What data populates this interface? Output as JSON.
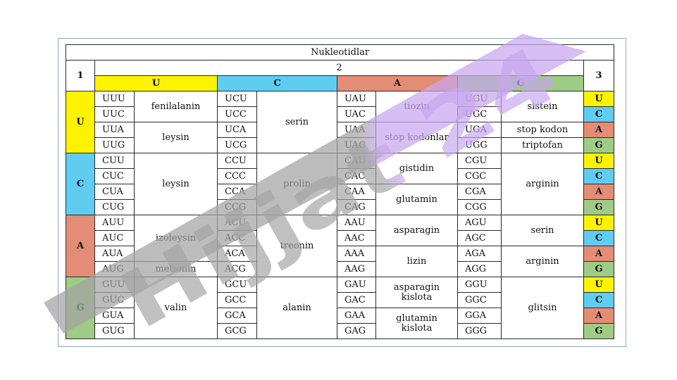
{
  "table": {
    "title": "Nukleotidlar",
    "label_first": "1",
    "label_second": "2",
    "label_third": "3",
    "bases": [
      "U",
      "C",
      "A",
      "G"
    ],
    "colors": {
      "U": "#fdf200",
      "C": "#5ecdf1",
      "A": "#e38c76",
      "G": "#9ecb85"
    },
    "blocks": [
      {
        "first": "U",
        "codons": [
          [
            "UUU",
            "UCU",
            "UAU",
            "UGU"
          ],
          [
            "UUC",
            "UCC",
            "UAC",
            "UGC"
          ],
          [
            "UUA",
            "UCA",
            "UAA",
            "UGA"
          ],
          [
            "UUG",
            "UCG",
            "UAG",
            "UGG"
          ]
        ],
        "amino": {
          "U": [
            "fenilalanin",
            "leysin"
          ],
          "C": [
            "serin"
          ],
          "A": [
            "tiozin",
            "stop kodonlar"
          ],
          "G": [
            "sistein",
            "stop kodon",
            "triptofan"
          ]
        }
      },
      {
        "first": "C",
        "codons": [
          [
            "CUU",
            "CCU",
            "CAU",
            "CGU"
          ],
          [
            "CUC",
            "CCC",
            "CAC",
            "CGC"
          ],
          [
            "CUA",
            "CCA",
            "CAA",
            "CGA"
          ],
          [
            "CUG",
            "CCG",
            "CAG",
            "CGG"
          ]
        ],
        "amino": {
          "U": [
            "leysin"
          ],
          "C": [
            "prolin"
          ],
          "A": [
            "gistidin",
            "glutamin"
          ],
          "G": [
            "arginin"
          ]
        }
      },
      {
        "first": "A",
        "codons": [
          [
            "AUU",
            "ACU",
            "AAU",
            "AGU"
          ],
          [
            "AUC",
            "ACC",
            "AAC",
            "AGC"
          ],
          [
            "AUA",
            "ACA",
            "AAA",
            "AGA"
          ],
          [
            "AUG",
            "ACG",
            "AAG",
            "AGG"
          ]
        ],
        "amino": {
          "U": [
            "izoleysin",
            "metionin"
          ],
          "C": [
            "treonin"
          ],
          "A": [
            "asparagin",
            "lizin"
          ],
          "G": [
            "serin",
            "arginin"
          ]
        }
      },
      {
        "first": "G",
        "codons": [
          [
            "GUU",
            "GCU",
            "GAU",
            "GGU"
          ],
          [
            "GUC",
            "GCC",
            "GAC",
            "GGC"
          ],
          [
            "GUA",
            "GCA",
            "GAA",
            "GGA"
          ],
          [
            "GUG",
            "GCG",
            "GAG",
            "GGG"
          ]
        ],
        "amino": {
          "U": [
            "valin"
          ],
          "C": [
            "alanin"
          ],
          "A": [
            "asparagin kislota",
            "glutamin kislota"
          ],
          "G": [
            "glitsin"
          ]
        }
      }
    ]
  },
  "watermark": {
    "text": "Hijjat 24",
    "color_left": "#a3a3a3",
    "color_right": "#c7a6ee"
  }
}
